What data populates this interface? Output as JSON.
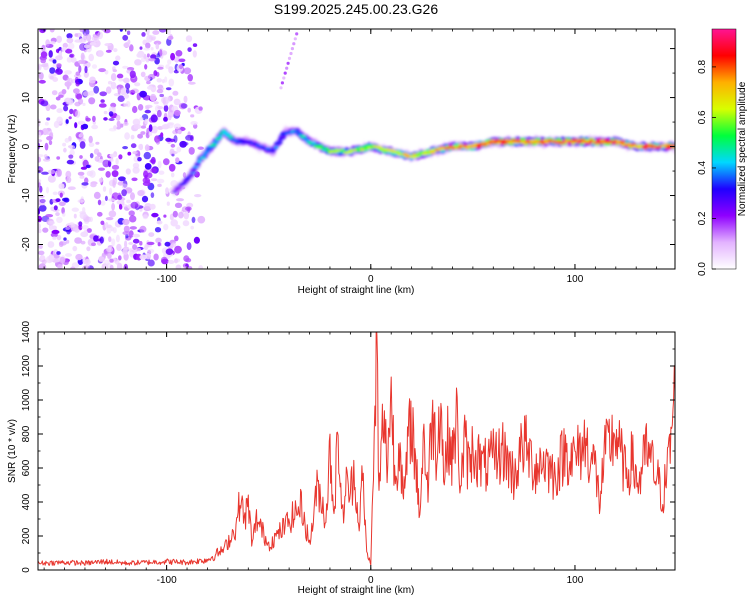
{
  "title": "S199.2025.245.00.23.G26",
  "colors": {
    "snr_line": "#e8362e",
    "background": "#ffffff",
    "colormap": [
      "#ffffff",
      "#e3b3ff",
      "#8f00ff",
      "#1f00ff",
      "#00d8ff",
      "#00ff3c",
      "#d8ff00",
      "#ffb000",
      "#ff0000",
      "#ff1493"
    ]
  },
  "chart_data": [
    {
      "type": "heatmap",
      "name": "spectrogram",
      "title": "S199.2025.245.00.23.G26",
      "xlabel": "Height of straight line (km)",
      "ylabel": "Frequency (Hz)",
      "xlim": [
        -163,
        149
      ],
      "ylim": [
        -25,
        24
      ],
      "xticks": [
        -100,
        0,
        100
      ],
      "xtick_labels": [
        "-100",
        "0",
        "100"
      ],
      "yticks": [
        -20,
        -10,
        0,
        10,
        20
      ],
      "ytick_labels": [
        "-20",
        "-10",
        "0",
        "10",
        "20"
      ],
      "ridge": {
        "x": [
          -96,
          -90,
          -84,
          -78,
          -72,
          -66,
          -60,
          -54,
          -48,
          -42,
          -36,
          -30,
          -20,
          -10,
          0,
          10,
          20,
          30,
          40,
          50,
          60,
          70,
          80,
          90,
          100,
          110,
          120,
          130,
          140,
          149
        ],
        "y": [
          -9,
          -7,
          -3,
          0,
          3,
          1,
          1,
          0,
          -1,
          3,
          3,
          1,
          -1,
          -1,
          0,
          -1,
          -2,
          -1,
          0,
          0,
          1,
          1,
          1,
          1,
          1,
          1,
          1,
          0,
          0,
          0
        ],
        "amplitude": [
          0.25,
          0.3,
          0.4,
          0.45,
          0.5,
          0.4,
          0.35,
          0.35,
          0.35,
          0.4,
          0.45,
          0.45,
          0.6,
          0.6,
          0.7,
          0.65,
          0.7,
          0.7,
          0.75,
          0.8,
          0.85,
          0.85,
          0.85,
          0.9,
          0.9,
          0.85,
          0.85,
          0.8,
          0.85,
          0.85
        ]
      },
      "colorbar": {
        "label": "Normalized spectral amplitude",
        "min": 0.0,
        "max": 0.95,
        "ticks": [
          0.0,
          0.2,
          0.4,
          0.6,
          0.8
        ],
        "tick_labels": [
          "0.0",
          "0.2",
          "0.4",
          "0.6",
          "0.8"
        ]
      }
    },
    {
      "type": "line",
      "name": "snr",
      "xlabel": "Height of straight line (km)",
      "ylabel": "SNR (10 * v/v)",
      "xlim": [
        -163,
        149
      ],
      "ylim": [
        0,
        1400
      ],
      "xticks": [
        -100,
        0,
        100
      ],
      "xtick_labels": [
        "-100",
        "0",
        "100"
      ],
      "yticks": [
        0,
        200,
        400,
        600,
        800,
        1000,
        1200,
        1400
      ],
      "ytick_labels": [
        "0",
        "200",
        "400",
        "600",
        "800",
        "1000",
        "1200",
        "1400"
      ],
      "series": [
        {
          "name": "SNR",
          "color": "#e8362e",
          "x": [
            -163,
            -150,
            -140,
            -130,
            -120,
            -110,
            -100,
            -90,
            -80,
            -72,
            -66,
            -64,
            -62,
            -60,
            -58,
            -56,
            -54,
            -50,
            -46,
            -42,
            -38,
            -34,
            -30,
            -26,
            -22,
            -20,
            -18,
            -16,
            -14,
            -12,
            -10,
            -8,
            -6,
            -4,
            -2,
            0,
            2,
            3,
            4,
            6,
            8,
            10,
            12,
            14,
            16,
            18,
            20,
            22,
            24,
            26,
            28,
            30,
            32,
            34,
            36,
            38,
            40,
            42,
            44,
            46,
            48,
            50,
            55,
            60,
            65,
            70,
            75,
            80,
            85,
            90,
            95,
            100,
            105,
            110,
            112,
            115,
            120,
            125,
            128,
            131,
            135,
            140,
            143,
            146,
            149
          ],
          "y": [
            40,
            45,
            40,
            50,
            40,
            45,
            50,
            45,
            60,
            120,
            250,
            420,
            300,
            380,
            150,
            300,
            250,
            150,
            200,
            260,
            320,
            380,
            150,
            500,
            300,
            700,
            350,
            800,
            300,
            500,
            450,
            600,
            250,
            550,
            100,
            40,
            850,
            1400,
            400,
            900,
            650,
            1030,
            500,
            800,
            380,
            700,
            900,
            600,
            350,
            800,
            450,
            950,
            700,
            1000,
            550,
            800,
            650,
            900,
            500,
            750,
            600,
            720,
            600,
            650,
            700,
            550,
            750,
            600,
            650,
            550,
            700,
            650,
            750,
            600,
            400,
            700,
            800,
            550,
            650,
            500,
            700,
            550,
            420,
            650,
            1050
          ]
        }
      ]
    }
  ]
}
